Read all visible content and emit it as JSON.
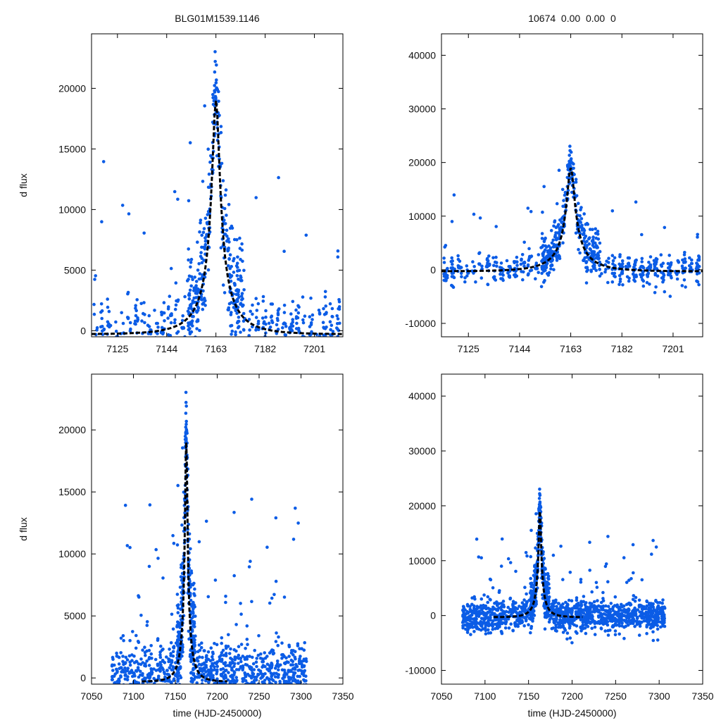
{
  "colors": {
    "points": "#0b5ce6",
    "model": "#000000",
    "frame": "#000000",
    "background": "#ffffff"
  },
  "chart_data": [
    {
      "id": "top-left",
      "type": "scatter",
      "title": "BLG01M1539.1146",
      "xlabel": "",
      "ylabel": "d flux",
      "xlim": [
        7115,
        7212
      ],
      "ylim": [
        -500,
        24500
      ],
      "xticks": [
        7125,
        7144,
        7163,
        7182,
        7201
      ],
      "yticks": [
        0,
        5000,
        10000,
        15000,
        20000
      ],
      "grid": false,
      "series": [
        {
          "name": "observed flux",
          "kind": "points",
          "values_approx": "dense blue points following the peak"
        },
        {
          "name": "microlensing model",
          "kind": "dashed-line",
          "model": {
            "t0": 7163,
            "tE": 15,
            "u0": 0.1,
            "peak": 19000,
            "baseline": -300
          }
        }
      ]
    },
    {
      "id": "top-right",
      "type": "scatter",
      "title": "10674  0.00  0.00  0",
      "xlabel": "",
      "ylabel": "",
      "xlim": [
        7115,
        7212
      ],
      "ylim": [
        -12500,
        44000
      ],
      "xticks": [
        7125,
        7144,
        7163,
        7182,
        7201
      ],
      "yticks": [
        -10000,
        0,
        10000,
        20000,
        30000,
        40000
      ],
      "grid": false,
      "series": [
        {
          "name": "observed flux",
          "kind": "points"
        },
        {
          "name": "microlensing model",
          "kind": "dashed-line",
          "model": {
            "t0": 7163,
            "tE": 15,
            "u0": 0.1,
            "peak": 19000,
            "baseline": -300
          }
        }
      ]
    },
    {
      "id": "bottom-left",
      "type": "scatter",
      "title": "",
      "xlabel": "time (HJD-2450000)",
      "ylabel": "d flux",
      "xlim": [
        7050,
        7350
      ],
      "ylim": [
        -500,
        24500
      ],
      "xticks": [
        7050,
        7100,
        7150,
        7200,
        7250,
        7300,
        7350
      ],
      "yticks": [
        0,
        5000,
        10000,
        15000,
        20000
      ],
      "grid": false,
      "series": [
        {
          "name": "observed flux",
          "kind": "points"
        },
        {
          "name": "microlensing model",
          "kind": "dashed-line",
          "model": {
            "t0": 7163,
            "tE": 15,
            "u0": 0.1,
            "peak": 19000,
            "baseline": -300
          }
        }
      ]
    },
    {
      "id": "bottom-right",
      "type": "scatter",
      "title": "",
      "xlabel": "time (HJD-2450000)",
      "ylabel": "",
      "xlim": [
        7050,
        7350
      ],
      "ylim": [
        -12500,
        44000
      ],
      "xticks": [
        7050,
        7100,
        7150,
        7200,
        7250,
        7300,
        7350
      ],
      "yticks": [
        -10000,
        0,
        10000,
        20000,
        30000,
        40000
      ],
      "grid": false,
      "series": [
        {
          "name": "observed flux",
          "kind": "points"
        },
        {
          "name": "microlensing model",
          "kind": "dashed-line",
          "model": {
            "t0": 7163,
            "tE": 15,
            "u0": 0.1,
            "peak": 19000,
            "baseline": -300
          }
        }
      ]
    }
  ]
}
